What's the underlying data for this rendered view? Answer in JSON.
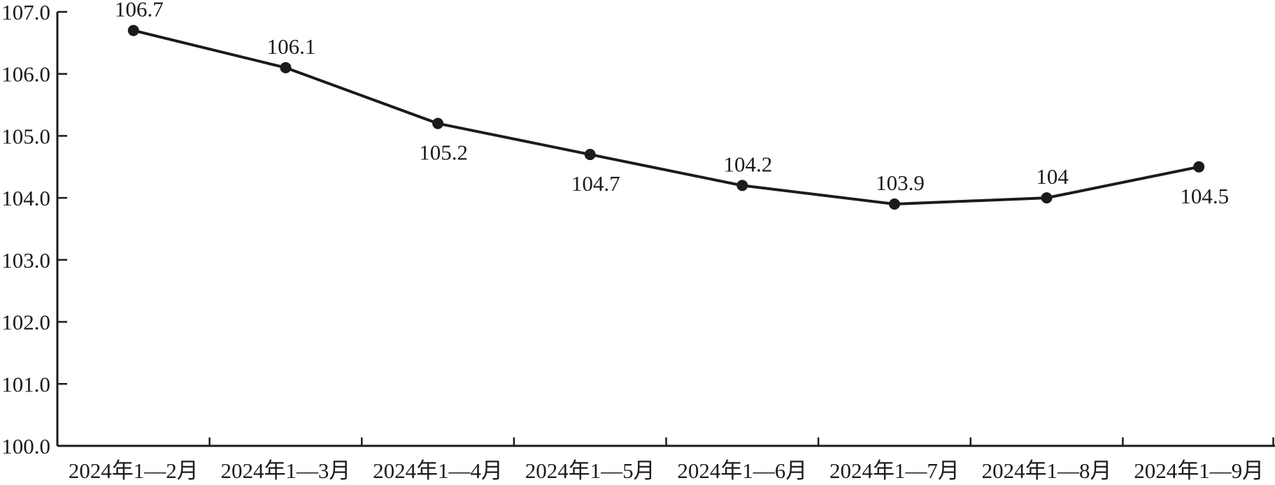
{
  "chart_data": {
    "type": "line",
    "categories": [
      "2024年1—2月",
      "2024年1—3月",
      "2024年1—4月",
      "2024年1—5月",
      "2024年1—6月",
      "2024年1—7月",
      "2024年1—8月",
      "2024年1—9月"
    ],
    "values": [
      106.7,
      106.1,
      105.2,
      104.7,
      104.2,
      103.9,
      104,
      104.5
    ],
    "point_labels": [
      "106.7",
      "106.1",
      "105.2",
      "104.7",
      "104.2",
      "103.9",
      "104",
      "104.5"
    ],
    "label_positions": [
      "above",
      "above",
      "below",
      "below",
      "above",
      "above",
      "above",
      "below"
    ],
    "title": "",
    "xlabel": "",
    "ylabel": "",
    "ylim": [
      100,
      107
    ],
    "ytick_labels": [
      "100.0",
      "101.0",
      "102.0",
      "103.0",
      "104.0",
      "105.0",
      "106.0",
      "107.0"
    ],
    "ytick_values": [
      100,
      101,
      102,
      103,
      104,
      105,
      106,
      107
    ],
    "grid": false,
    "legend": "none",
    "line_color": "#1b1b1b",
    "axis_color": "#1b1b1b",
    "marker": "circle",
    "background": "#ffffff"
  }
}
